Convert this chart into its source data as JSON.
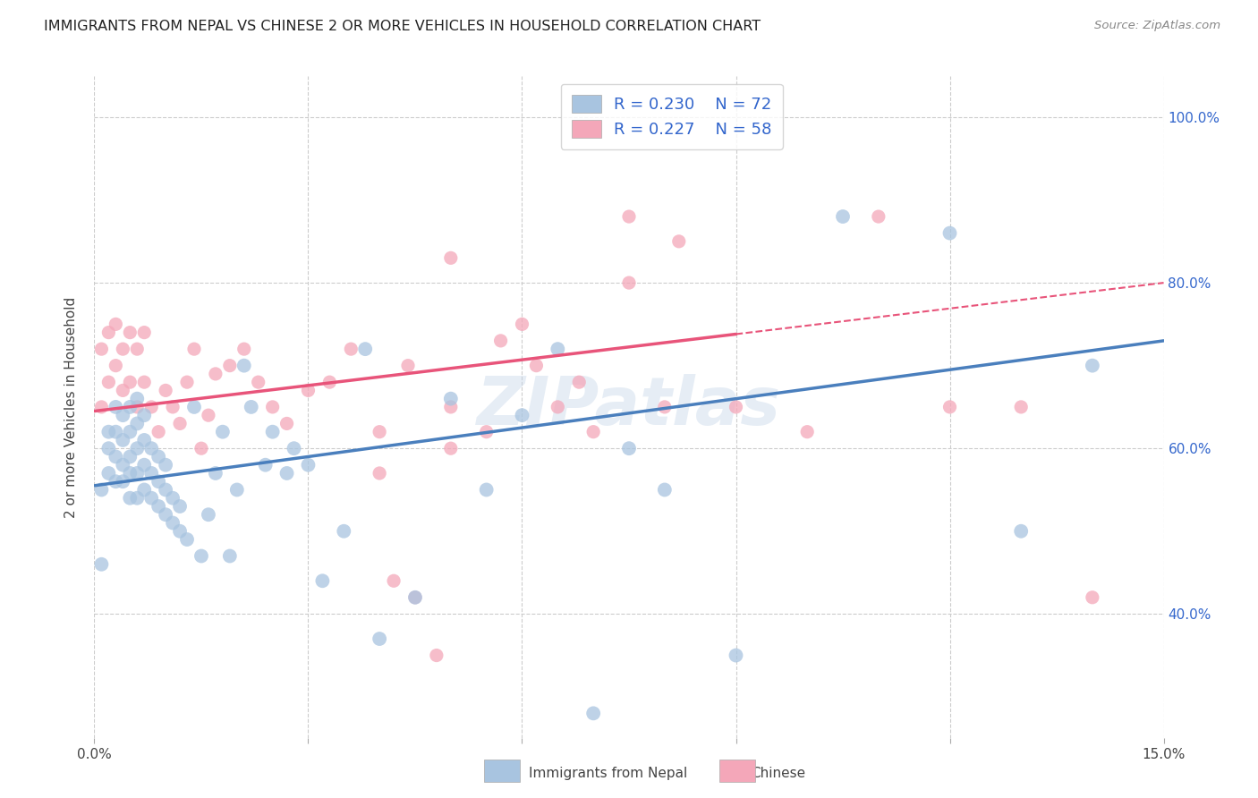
{
  "title": "IMMIGRANTS FROM NEPAL VS CHINESE 2 OR MORE VEHICLES IN HOUSEHOLD CORRELATION CHART",
  "source": "Source: ZipAtlas.com",
  "ylabel": "2 or more Vehicles in Household",
  "xmin": 0.0,
  "xmax": 0.15,
  "ymin": 0.25,
  "ymax": 1.05,
  "x_ticks": [
    0.0,
    0.03,
    0.06,
    0.09,
    0.12,
    0.15
  ],
  "x_tick_labels": [
    "0.0%",
    "",
    "",
    "",
    "",
    "15.0%"
  ],
  "y_tick_labels": [
    "40.0%",
    "60.0%",
    "80.0%",
    "100.0%"
  ],
  "y_ticks": [
    0.4,
    0.6,
    0.8,
    1.0
  ],
  "nepal_color": "#a8c4e0",
  "chinese_color": "#f4a7b9",
  "nepal_line_color": "#4a7fbd",
  "chinese_line_color": "#e8547a",
  "legend_text_color": "#3366cc",
  "nepal_R": 0.23,
  "nepal_N": 72,
  "chinese_R": 0.227,
  "chinese_N": 58,
  "watermark": "ZIPatlas",
  "nepal_scatter_x": [
    0.001,
    0.001,
    0.002,
    0.002,
    0.002,
    0.003,
    0.003,
    0.003,
    0.003,
    0.004,
    0.004,
    0.004,
    0.004,
    0.005,
    0.005,
    0.005,
    0.005,
    0.005,
    0.006,
    0.006,
    0.006,
    0.006,
    0.006,
    0.007,
    0.007,
    0.007,
    0.007,
    0.008,
    0.008,
    0.008,
    0.009,
    0.009,
    0.009,
    0.01,
    0.01,
    0.01,
    0.011,
    0.011,
    0.012,
    0.012,
    0.013,
    0.014,
    0.015,
    0.016,
    0.017,
    0.018,
    0.019,
    0.02,
    0.021,
    0.022,
    0.024,
    0.025,
    0.027,
    0.028,
    0.03,
    0.032,
    0.035,
    0.038,
    0.04,
    0.045,
    0.05,
    0.055,
    0.06,
    0.065,
    0.07,
    0.075,
    0.08,
    0.09,
    0.105,
    0.12,
    0.13,
    0.14
  ],
  "nepal_scatter_y": [
    0.46,
    0.55,
    0.57,
    0.6,
    0.62,
    0.56,
    0.59,
    0.62,
    0.65,
    0.56,
    0.58,
    0.61,
    0.64,
    0.54,
    0.57,
    0.59,
    0.62,
    0.65,
    0.54,
    0.57,
    0.6,
    0.63,
    0.66,
    0.55,
    0.58,
    0.61,
    0.64,
    0.54,
    0.57,
    0.6,
    0.53,
    0.56,
    0.59,
    0.52,
    0.55,
    0.58,
    0.51,
    0.54,
    0.5,
    0.53,
    0.49,
    0.65,
    0.47,
    0.52,
    0.57,
    0.62,
    0.47,
    0.55,
    0.7,
    0.65,
    0.58,
    0.62,
    0.57,
    0.6,
    0.58,
    0.44,
    0.5,
    0.72,
    0.37,
    0.42,
    0.66,
    0.55,
    0.64,
    0.72,
    0.28,
    0.6,
    0.55,
    0.35,
    0.88,
    0.86,
    0.5,
    0.7
  ],
  "chinese_scatter_x": [
    0.001,
    0.001,
    0.002,
    0.002,
    0.003,
    0.003,
    0.004,
    0.004,
    0.005,
    0.005,
    0.006,
    0.006,
    0.007,
    0.007,
    0.008,
    0.009,
    0.01,
    0.011,
    0.012,
    0.013,
    0.014,
    0.015,
    0.016,
    0.017,
    0.019,
    0.021,
    0.023,
    0.025,
    0.027,
    0.03,
    0.033,
    0.036,
    0.04,
    0.044,
    0.05,
    0.057,
    0.062,
    0.068,
    0.075,
    0.082,
    0.04,
    0.042,
    0.045,
    0.048,
    0.05,
    0.055,
    0.06,
    0.065,
    0.07,
    0.075,
    0.08,
    0.09,
    0.1,
    0.11,
    0.12,
    0.13,
    0.14,
    0.05
  ],
  "chinese_scatter_y": [
    0.72,
    0.65,
    0.74,
    0.68,
    0.75,
    0.7,
    0.72,
    0.67,
    0.74,
    0.68,
    0.72,
    0.65,
    0.74,
    0.68,
    0.65,
    0.62,
    0.67,
    0.65,
    0.63,
    0.68,
    0.72,
    0.6,
    0.64,
    0.69,
    0.7,
    0.72,
    0.68,
    0.65,
    0.63,
    0.67,
    0.68,
    0.72,
    0.57,
    0.7,
    0.65,
    0.73,
    0.7,
    0.68,
    0.8,
    0.85,
    0.62,
    0.44,
    0.42,
    0.35,
    0.83,
    0.62,
    0.75,
    0.65,
    0.62,
    0.88,
    0.65,
    0.65,
    0.62,
    0.88,
    0.65,
    0.65,
    0.42,
    0.6
  ],
  "nepal_line_x0": 0.0,
  "nepal_line_x1": 0.15,
  "nepal_line_y0": 0.555,
  "nepal_line_y1": 0.73,
  "chinese_line_x0": 0.0,
  "chinese_line_x1": 0.15,
  "chinese_line_y0": 0.645,
  "chinese_line_y1": 0.8,
  "chinese_line_solid_x1": 0.09
}
